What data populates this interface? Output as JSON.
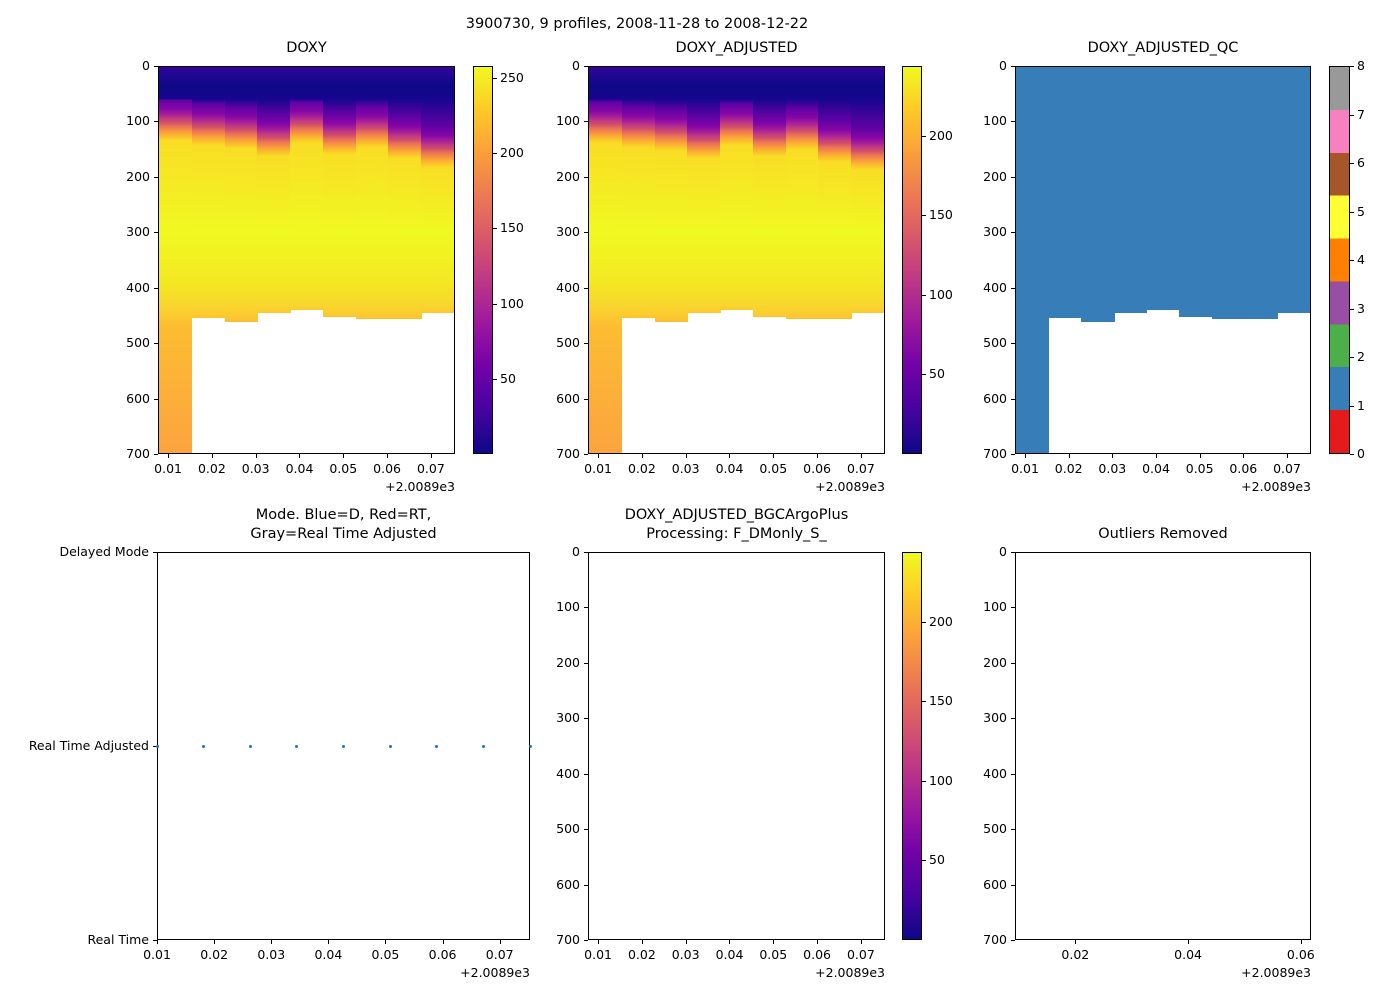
{
  "figure": {
    "suptitle": "3900730, 9 profiles, 2008-11-28 to 2008-12-22",
    "background": "#ffffff",
    "x_offset_text": "+2.0089e3"
  },
  "chart_data": [
    {
      "id": "doxy",
      "type": "heatmap",
      "title_lines": [
        "DOXY"
      ],
      "xlabel_offset": "+2.0089e3",
      "xlim": [
        0.0077,
        0.0755
      ],
      "xticks": [
        0.01,
        0.02,
        0.03,
        0.04,
        0.05,
        0.06,
        0.07
      ],
      "ylim": [
        700,
        0
      ],
      "yticks": [
        0,
        100,
        200,
        300,
        400,
        500,
        600,
        700
      ],
      "profile_x": [
        0.01,
        0.0182,
        0.0263,
        0.0345,
        0.0427,
        0.0508,
        0.059,
        0.0672,
        0.0753
      ],
      "column_transition_depth_m": [
        100,
        108,
        114,
        128,
        104,
        124,
        112,
        132,
        148
      ],
      "column_bottom_depth_m": [
        700,
        456,
        462,
        447,
        441,
        453,
        457,
        457,
        446
      ],
      "colorbar": {
        "kind": "continuous",
        "colormap": "plasma_r",
        "vmin": 0,
        "vmax": 258,
        "ticks": [
          250,
          200,
          150,
          100,
          50
        ]
      }
    },
    {
      "id": "doxy_adjusted",
      "type": "heatmap",
      "title_lines": [
        "DOXY_ADJUSTED"
      ],
      "xlabel_offset": "+2.0089e3",
      "xlim": [
        0.0077,
        0.0755
      ],
      "xticks": [
        0.01,
        0.02,
        0.03,
        0.04,
        0.05,
        0.06,
        0.07
      ],
      "ylim": [
        700,
        0
      ],
      "yticks": [
        0,
        100,
        200,
        300,
        400,
        500,
        600,
        700
      ],
      "profile_x": [
        0.01,
        0.0182,
        0.0263,
        0.0345,
        0.0427,
        0.0508,
        0.059,
        0.0672,
        0.0753
      ],
      "column_transition_depth_m": [
        104,
        112,
        118,
        132,
        108,
        128,
        116,
        138,
        152
      ],
      "column_bottom_depth_m": [
        700,
        456,
        462,
        447,
        441,
        453,
        457,
        457,
        446
      ],
      "colorbar": {
        "kind": "continuous",
        "colormap": "plasma_r",
        "vmin": 0,
        "vmax": 244,
        "ticks": [
          200,
          150,
          100,
          50
        ]
      }
    },
    {
      "id": "qc",
      "type": "heatmap_qc",
      "title_lines": [
        "DOXY_ADJUSTED_QC"
      ],
      "xlabel_offset": "+2.0089e3",
      "xlim": [
        0.0077,
        0.0755
      ],
      "xticks": [
        0.01,
        0.02,
        0.03,
        0.04,
        0.05,
        0.06,
        0.07
      ],
      "ylim": [
        700,
        0
      ],
      "yticks": [
        0,
        100,
        200,
        300,
        400,
        500,
        600,
        700
      ],
      "qc_fill_value": 1,
      "qc_fill_color": "#377eb8",
      "column_bottom_depth_m": [
        700,
        456,
        462,
        447,
        441,
        453,
        457,
        457,
        446
      ],
      "colorbar": {
        "kind": "discrete",
        "ticks": [
          0,
          1,
          2,
          3,
          4,
          5,
          6,
          7,
          8
        ],
        "segment_colors_bottom_to_top": [
          "#e41a1c",
          "#377eb8",
          "#4daf4a",
          "#984ea3",
          "#ff7f00",
          "#ffff33",
          "#a65628",
          "#f781bf",
          "#999999"
        ]
      }
    },
    {
      "id": "mode",
      "type": "scatter",
      "title_lines": [
        "Mode. Blue=D, Red=RT,",
        "Gray=Real Time Adjusted"
      ],
      "xlabel_offset": "+2.0089e3",
      "xlim": [
        0.01,
        0.0753
      ],
      "xticks": [
        0.01,
        0.02,
        0.03,
        0.04,
        0.05,
        0.06,
        0.07
      ],
      "y_categories": [
        "Delayed Mode",
        "Real Time Adjusted",
        "Real Time"
      ],
      "points": {
        "x": [
          0.01,
          0.0182,
          0.0263,
          0.0345,
          0.0427,
          0.0508,
          0.059,
          0.0672,
          0.0753
        ],
        "y_category": "Real Time Adjusted",
        "color": "#1f77b4"
      }
    },
    {
      "id": "bgc",
      "type": "empty",
      "title_lines": [
        "DOXY_ADJUSTED_BGCArgoPlus",
        "Processing: F_DMonly_S_"
      ],
      "xlabel_offset": "+2.0089e3",
      "xlim": [
        0.0077,
        0.0755
      ],
      "xticks": [
        0.01,
        0.02,
        0.03,
        0.04,
        0.05,
        0.06,
        0.07
      ],
      "ylim": [
        700,
        0
      ],
      "yticks": [
        0,
        100,
        200,
        300,
        400,
        500,
        600,
        700
      ],
      "colorbar": {
        "kind": "continuous",
        "colormap": "plasma_r",
        "vmin": 0,
        "vmax": 244,
        "ticks": [
          200,
          150,
          100,
          50
        ]
      }
    },
    {
      "id": "outliers",
      "type": "empty",
      "title_lines": [
        "Outliers Removed"
      ],
      "xlabel_offset": "+2.0089e3",
      "xlim": [
        0.0093,
        0.0618
      ],
      "xticks": [
        0.02,
        0.04,
        0.06
      ],
      "ylim": [
        700,
        0
      ],
      "yticks": [
        0,
        100,
        200,
        300,
        400,
        500,
        600,
        700
      ]
    }
  ],
  "color_scales": {
    "plasma": [
      "#0d0887",
      "#46039f",
      "#7201a8",
      "#9c179e",
      "#bd3786",
      "#d8576b",
      "#ed7953",
      "#fb9f3a",
      "#fdca26",
      "#f0f921"
    ]
  }
}
